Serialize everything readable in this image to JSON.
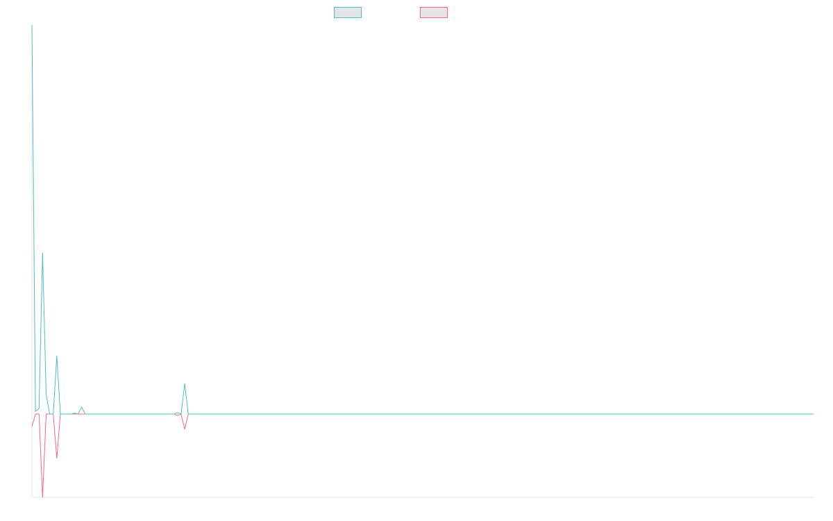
{
  "chart_data": {
    "type": "line",
    "title": "",
    "xlabel": "",
    "ylabel": "",
    "grid": false,
    "legend": "top-center",
    "ylim": [
      -3,
      14
    ],
    "xlim": [
      0,
      220
    ],
    "x": [
      0,
      1,
      2,
      3,
      4,
      5,
      6,
      7,
      8,
      9,
      10,
      11,
      12,
      13,
      14,
      15,
      16,
      17,
      18,
      19,
      20,
      21,
      22,
      23,
      24,
      25,
      26,
      27,
      28,
      29,
      30,
      31,
      32,
      33,
      34,
      35,
      36,
      37,
      38,
      39,
      40,
      41,
      42,
      43,
      44,
      45,
      220
    ],
    "series": [
      {
        "color": "#4bc0c0",
        "values": [
          14.0,
          0.1,
          0.2,
          5.8,
          0.7,
          0.0,
          0.0,
          2.1,
          0.0,
          0.0,
          0.0,
          0.0,
          0.03,
          0.0,
          0.25,
          0.0,
          0.0,
          0.0,
          0.0,
          0.0,
          0.0,
          0.0,
          0.0,
          0.0,
          0.0,
          0.0,
          0.0,
          0.0,
          0.0,
          0.0,
          0.0,
          0.0,
          0.0,
          0.0,
          0.0,
          0.0,
          0.0,
          0.0,
          0.0,
          0.0,
          0.0,
          0.05,
          0.0,
          1.1,
          0.0,
          0.0,
          0.0
        ]
      },
      {
        "color": "#ff6384",
        "values": [
          -0.45,
          0.0,
          0.0,
          -3.0,
          0.0,
          0.0,
          0.0,
          -1.6,
          0.0,
          0.0,
          0.0,
          0.0,
          0.0,
          0.0,
          0.0,
          0.0,
          0.0,
          0.0,
          0.0,
          0.0,
          0.0,
          0.0,
          0.0,
          0.0,
          0.0,
          0.0,
          0.0,
          0.0,
          0.0,
          0.0,
          0.0,
          0.0,
          0.0,
          0.0,
          0.0,
          0.0,
          0.0,
          0.0,
          0.0,
          0.0,
          0.0,
          -0.05,
          0.0,
          -0.55,
          0.0,
          0.0,
          0.0
        ]
      }
    ]
  }
}
